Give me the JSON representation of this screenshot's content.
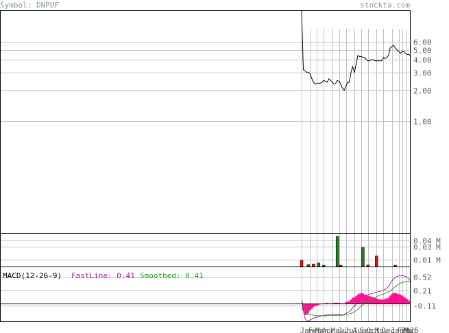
{
  "header": {
    "symbol_label": "Symbol: DNPUF",
    "site": "stockta.com"
  },
  "macd": {
    "title": "MACD(12-26-9)",
    "fast_label": "FastLine: 0.41",
    "smoothed_label": "Smoothed: 0.41"
  },
  "colors": {
    "price_line": "#000000",
    "fastline": "#9a2aa0",
    "smoothed": "#22a022",
    "histogram": "#ff1493",
    "vol_up": "#1a7f1a",
    "vol_down": "#dd1111",
    "grid": "#c0c0c0",
    "frame": "#000000",
    "header_text": "#8a9a8a"
  },
  "chart_data": [
    {
      "type": "line",
      "panel": "price",
      "yscale": "log",
      "ylim": [
        0.08,
        12
      ],
      "yticks": [
        "6.00",
        "5.00",
        "4.00",
        "3.00",
        "2.00",
        "1.00"
      ],
      "x": [
        "2024-01-02",
        "2024-01-09",
        "2024-01-16",
        "2024-01-23",
        "2024-01-30",
        "2024-02-06",
        "2024-02-13",
        "2024-02-20",
        "2024-02-27",
        "2024-03-05",
        "2024-03-12",
        "2024-03-19",
        "2024-03-26",
        "2024-04-02",
        "2024-04-09",
        "2024-04-16",
        "2024-04-23",
        "2024-04-30",
        "2024-05-07",
        "2024-05-14",
        "2024-05-21",
        "2024-05-28",
        "2024-06-04",
        "2024-06-11",
        "2024-06-18",
        "2024-06-25",
        "2024-07-02",
        "2024-07-09",
        "2024-07-16",
        "2024-07-23",
        "2024-07-30",
        "2024-08-06",
        "2024-08-13",
        "2024-08-20",
        "2024-08-27",
        "2024-09-03",
        "2024-09-10",
        "2024-09-17",
        "2024-09-24",
        "2024-10-01",
        "2024-10-08",
        "2024-10-15",
        "2024-10-22",
        "2024-10-29",
        "2024-11-05",
        "2024-11-12",
        "2024-11-19",
        "2024-11-26",
        "2024-12-03",
        "2024-12-10",
        "2024-12-17",
        "2024-12-24",
        "2024-12-31",
        "2025-01-07",
        "2025-01-14",
        "2025-01-21",
        "2025-01-28",
        "2025-02-04",
        "2025-02-11",
        "2025-02-18",
        "2025-02-25",
        "2025-03-04",
        "2025-03-11",
        "2025-03-18",
        "2025-03-25"
      ],
      "values": [
        12,
        3.2,
        3.1,
        3.0,
        3.0,
        2.9,
        2.6,
        2.4,
        2.3,
        2.35,
        2.35,
        2.35,
        2.4,
        2.5,
        2.45,
        2.4,
        2.6,
        2.5,
        2.4,
        2.3,
        2.35,
        2.5,
        2.45,
        2.3,
        2.1,
        2.0,
        2.2,
        2.4,
        2.4,
        3.0,
        3.4,
        3.0,
        3.6,
        4.4,
        4.3,
        4.3,
        4.2,
        4.2,
        4.0,
        3.9,
        3.9,
        4.0,
        4.0,
        3.9,
        3.9,
        3.9,
        3.9,
        3.9,
        4.2,
        4.1,
        4.2,
        4.4,
        5.2,
        5.4,
        5.5,
        5.2,
        5.0,
        4.8,
        4.6,
        4.8,
        4.8,
        4.6,
        4.5,
        4.5,
        4.3
      ]
    },
    {
      "type": "bar",
      "panel": "volume",
      "yticks": [
        "0.04 M",
        "0.03 M",
        "0.01 M"
      ],
      "ylim": [
        0,
        0.05
      ],
      "bars": [
        {
          "date": "2024-01-02",
          "value": 0.0095,
          "direction": "down"
        },
        {
          "date": "2024-01-30",
          "value": 0.003,
          "direction": "up"
        },
        {
          "date": "2024-02-20",
          "value": 0.004,
          "direction": "down"
        },
        {
          "date": "2024-03-12",
          "value": 0.0055,
          "direction": "up"
        },
        {
          "date": "2024-04-02",
          "value": 0.002,
          "direction": "up"
        },
        {
          "date": "2024-05-28",
          "value": 0.046,
          "direction": "up"
        },
        {
          "date": "2024-06-11",
          "value": 0.002,
          "direction": "down"
        },
        {
          "date": "2024-09-10",
          "value": 0.029,
          "direction": "up"
        },
        {
          "date": "2024-10-01",
          "value": 0.0025,
          "direction": "down"
        },
        {
          "date": "2024-11-05",
          "value": 0.016,
          "direction": "down"
        },
        {
          "date": "2025-01-21",
          "value": 0.002,
          "direction": "down"
        }
      ]
    },
    {
      "type": "line",
      "panel": "macd",
      "ylim": [
        -0.45,
        0.72
      ],
      "yticks": [
        "0.52",
        "0.21",
        "-0.11"
      ],
      "series": [
        {
          "name": "FastLine",
          "values": [
            0.0,
            -0.22,
            -0.38,
            -0.44,
            -0.44,
            -0.42,
            -0.4,
            -0.38,
            -0.37,
            -0.36,
            -0.35,
            -0.34,
            -0.33,
            -0.32,
            -0.32,
            -0.31,
            -0.31,
            -0.31,
            -0.31,
            -0.3,
            -0.3,
            -0.3,
            -0.3,
            -0.31,
            -0.31,
            -0.3,
            -0.28,
            -0.26,
            -0.24,
            -0.2,
            -0.15,
            -0.12,
            -0.08,
            -0.02,
            0.04,
            0.08,
            0.1,
            0.11,
            0.12,
            0.13,
            0.14,
            0.15,
            0.16,
            0.17,
            0.18,
            0.19,
            0.2,
            0.21,
            0.22,
            0.24,
            0.27,
            0.3,
            0.36,
            0.42,
            0.47,
            0.5,
            0.52,
            0.53,
            0.54,
            0.54,
            0.53,
            0.52,
            0.5,
            0.47,
            0.41
          ]
        },
        {
          "name": "Smoothed",
          "values": [
            0.0,
            -0.1,
            -0.18,
            -0.24,
            -0.28,
            -0.3,
            -0.31,
            -0.32,
            -0.33,
            -0.33,
            -0.33,
            -0.33,
            -0.33,
            -0.33,
            -0.33,
            -0.33,
            -0.32,
            -0.32,
            -0.32,
            -0.32,
            -0.32,
            -0.32,
            -0.32,
            -0.32,
            -0.32,
            -0.31,
            -0.31,
            -0.3,
            -0.29,
            -0.28,
            -0.26,
            -0.24,
            -0.22,
            -0.19,
            -0.15,
            -0.12,
            -0.09,
            -0.06,
            -0.04,
            -0.02,
            0.0,
            0.02,
            0.04,
            0.06,
            0.08,
            0.1,
            0.12,
            0.13,
            0.14,
            0.15,
            0.17,
            0.19,
            0.21,
            0.24,
            0.27,
            0.3,
            0.33,
            0.35,
            0.37,
            0.39,
            0.4,
            0.41,
            0.41,
            0.41,
            0.41
          ]
        }
      ],
      "histogram": [
        0.0,
        -0.12,
        -0.2,
        -0.2,
        -0.16,
        -0.12,
        -0.09,
        -0.06,
        -0.04,
        -0.03,
        -0.02,
        -0.01,
        0.0,
        0.01,
        0.01,
        0.02,
        0.01,
        0.01,
        0.01,
        0.02,
        0.02,
        0.02,
        0.02,
        0.01,
        0.01,
        0.01,
        0.03,
        0.04,
        0.05,
        0.08,
        0.11,
        0.12,
        0.14,
        0.17,
        0.19,
        0.2,
        0.19,
        0.17,
        0.16,
        0.15,
        0.14,
        0.13,
        0.12,
        0.11,
        0.1,
        0.09,
        0.08,
        0.08,
        0.08,
        0.09,
        0.1,
        0.11,
        0.15,
        0.18,
        0.2,
        0.2,
        0.19,
        0.18,
        0.17,
        0.15,
        0.13,
        0.11,
        0.09,
        0.06,
        0.0
      ]
    }
  ],
  "x_axis": {
    "months": [
      {
        "label": "Jan",
        "date": "2024-01-02"
      },
      {
        "label": "Feb",
        "date": "2024-02-06"
      },
      {
        "label": "Mar",
        "date": "2024-03-05"
      },
      {
        "label": "Apr",
        "date": "2024-04-02"
      },
      {
        "label": "May",
        "date": "2024-05-07"
      },
      {
        "label": "Jun",
        "date": "2024-06-04"
      },
      {
        "label": "Jul",
        "date": "2024-07-02"
      },
      {
        "label": "Aug",
        "date": "2024-08-06"
      },
      {
        "label": "Sep",
        "date": "2024-09-03"
      },
      {
        "label": "Oct",
        "date": "2024-10-01"
      },
      {
        "label": "Nov",
        "date": "2024-11-05"
      },
      {
        "label": "Dec",
        "date": "2024-12-03"
      },
      {
        "label": "Jan",
        "date": "2025-01-07"
      },
      {
        "label": "Feb",
        "date": "2025-02-04"
      },
      {
        "label": "2025",
        "date": "2025-02-18"
      },
      {
        "label": "Mar",
        "date": "2025-03-04"
      }
    ]
  }
}
